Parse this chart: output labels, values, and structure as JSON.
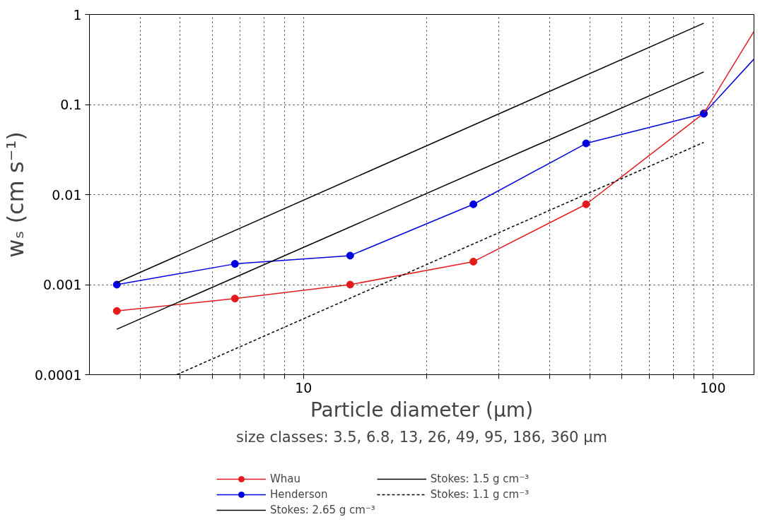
{
  "chart_data": {
    "type": "line",
    "log": "xy",
    "xlabel": "Particle diameter (μm)",
    "ylabel": "wₛ (cm s⁻¹)",
    "xlim": [
      3,
      126
    ],
    "ylim": [
      0.0001,
      1
    ],
    "xticks": [
      {
        "value": 4,
        "label": null
      },
      {
        "value": 5,
        "label": null
      },
      {
        "value": 6,
        "label": null
      },
      {
        "value": 7,
        "label": null
      },
      {
        "value": 8,
        "label": null
      },
      {
        "value": 9,
        "label": null
      },
      10,
      {
        "value": 20,
        "label": null
      },
      {
        "value": 30,
        "label": null
      },
      {
        "value": 40,
        "label": null
      },
      {
        "value": 50,
        "label": null
      },
      {
        "value": 60,
        "label": null
      },
      {
        "value": 70,
        "label": null
      },
      {
        "value": 80,
        "label": null
      },
      {
        "value": 90,
        "label": null
      },
      100
    ],
    "yticks": [
      0.0001,
      0.001,
      0.01,
      0.1,
      1
    ],
    "grid": true,
    "legend": "bottom",
    "annotations": [
      "size classes: 3.5, 6.8, 13, 26, 49, 95, 186, 360 μm"
    ],
    "series": [
      {
        "name": "Whau",
        "color": "#e41a1c",
        "marker": "circle",
        "x": [
          3.5,
          6.8,
          13,
          26,
          49,
          95
        ],
        "values": [
          0.00051,
          0.0007,
          0.001,
          0.0018,
          0.0078,
          0.08
        ]
      },
      {
        "name": "Henderson",
        "color": "#0000e0",
        "marker": "circle",
        "x": [
          3.5,
          6.8,
          13,
          26,
          49,
          95
        ],
        "values": [
          0.001,
          0.0017,
          0.0021,
          0.0078,
          0.037,
          0.079
        ]
      },
      {
        "name": "Stokes: 2.65 g cm⁻³",
        "color": "#000000",
        "marker": "none",
        "line_style": "solid",
        "x": [
          3.5,
          95
        ],
        "values": [
          0.00105,
          0.8
        ]
      },
      {
        "name": "Stokes: 1.5 g cm⁻³",
        "color": "#000000",
        "marker": "none",
        "line_style": "solid",
        "x": [
          3.5,
          95
        ],
        "values": [
          0.00032,
          0.23
        ]
      },
      {
        "name": "Stokes: 1.1 g cm⁻³",
        "color": "#000000",
        "marker": "none",
        "line_style": "dashed",
        "x": [
          4.9,
          95
        ],
        "values": [
          0.0001,
          0.038
        ]
      },
      {
        "color": "#e41a1c",
        "marker": "none",
        "x": [
          95,
          126
        ],
        "values": [
          0.08,
          0.65
        ]
      },
      {
        "color": "#0000e0",
        "marker": "none",
        "x": [
          95,
          126
        ],
        "values": [
          0.079,
          0.32
        ]
      }
    ]
  }
}
